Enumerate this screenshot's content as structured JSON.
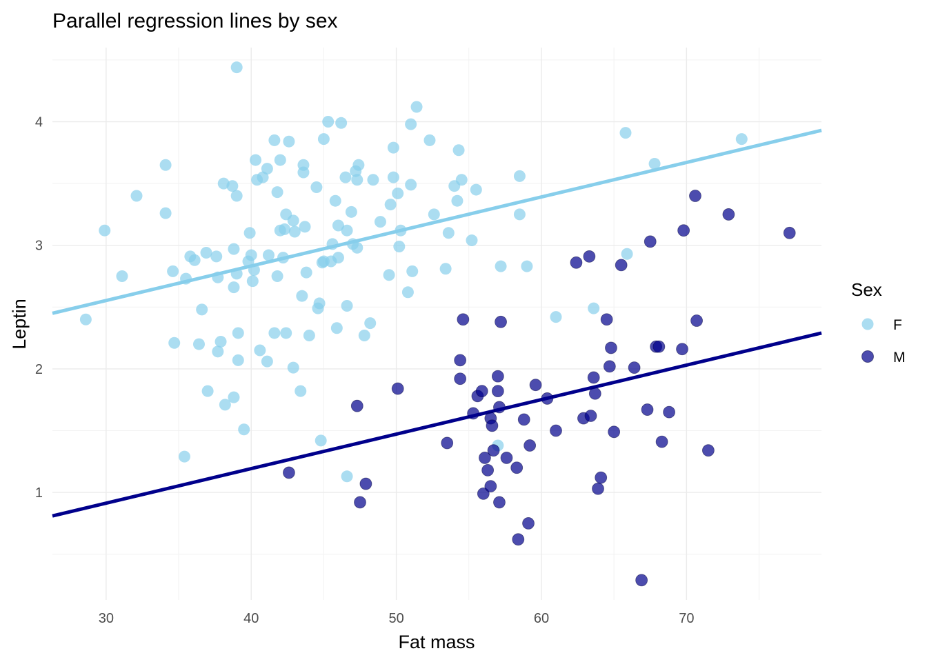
{
  "chart_data": {
    "type": "scatter",
    "title": "Parallel regression lines by sex",
    "xlabel": "Fat mass",
    "ylabel": "Leptin",
    "xlim": [
      26.3,
      79.3
    ],
    "ylim": [
      0.13,
      4.6
    ],
    "x_ticks": [
      30,
      40,
      50,
      60,
      70
    ],
    "y_ticks": [
      1,
      2,
      3,
      4
    ],
    "grid": true,
    "legend": {
      "title": "Sex",
      "position": "right"
    },
    "series": [
      {
        "name": "F",
        "color": "#87CEEB",
        "points": [
          [
            28.6,
            2.4
          ],
          [
            29.9,
            3.12
          ],
          [
            31.1,
            2.75
          ],
          [
            32.1,
            3.4
          ],
          [
            34.1,
            3.26
          ],
          [
            34.1,
            3.65
          ],
          [
            34.6,
            2.79
          ],
          [
            34.7,
            2.21
          ],
          [
            35.4,
            1.29
          ],
          [
            35.5,
            2.73
          ],
          [
            35.8,
            2.91
          ],
          [
            36.1,
            2.88
          ],
          [
            36.4,
            2.2
          ],
          [
            36.6,
            2.48
          ],
          [
            36.9,
            2.94
          ],
          [
            37.0,
            1.82
          ],
          [
            37.6,
            2.91
          ],
          [
            37.7,
            2.74
          ],
          [
            37.7,
            2.14
          ],
          [
            37.9,
            2.22
          ],
          [
            38.1,
            3.5
          ],
          [
            38.2,
            1.71
          ],
          [
            38.7,
            3.48
          ],
          [
            38.8,
            2.97
          ],
          [
            38.8,
            2.66
          ],
          [
            38.8,
            1.77
          ],
          [
            39.0,
            3.4
          ],
          [
            39.0,
            2.77
          ],
          [
            39.1,
            2.29
          ],
          [
            39.1,
            2.07
          ],
          [
            39.0,
            4.44
          ],
          [
            39.5,
            1.51
          ],
          [
            39.8,
            2.87
          ],
          [
            39.9,
            3.1
          ],
          [
            40.0,
            2.92
          ],
          [
            40.1,
            2.71
          ],
          [
            40.2,
            2.8
          ],
          [
            40.3,
            3.69
          ],
          [
            40.4,
            3.53
          ],
          [
            40.6,
            2.15
          ],
          [
            40.8,
            3.55
          ],
          [
            41.1,
            2.06
          ],
          [
            41.1,
            3.62
          ],
          [
            41.2,
            2.92
          ],
          [
            41.6,
            2.29
          ],
          [
            41.6,
            3.85
          ],
          [
            41.8,
            2.75
          ],
          [
            41.8,
            3.43
          ],
          [
            42.0,
            3.69
          ],
          [
            42.0,
            3.12
          ],
          [
            42.2,
            2.9
          ],
          [
            42.3,
            3.13
          ],
          [
            42.4,
            3.25
          ],
          [
            42.4,
            2.29
          ],
          [
            42.6,
            3.84
          ],
          [
            42.9,
            3.2
          ],
          [
            42.9,
            2.01
          ],
          [
            43.0,
            3.11
          ],
          [
            43.4,
            1.82
          ],
          [
            43.5,
            2.59
          ],
          [
            43.6,
            3.59
          ],
          [
            43.6,
            3.65
          ],
          [
            43.7,
            3.15
          ],
          [
            43.8,
            2.78
          ],
          [
            44.0,
            2.27
          ],
          [
            44.5,
            3.47
          ],
          [
            44.6,
            2.49
          ],
          [
            44.7,
            2.53
          ],
          [
            44.8,
            1.42
          ],
          [
            44.9,
            2.86
          ],
          [
            45.0,
            3.86
          ],
          [
            45.0,
            2.87
          ],
          [
            45.3,
            4.0
          ],
          [
            45.5,
            2.87
          ],
          [
            45.6,
            3.01
          ],
          [
            45.8,
            3.36
          ],
          [
            45.9,
            2.33
          ],
          [
            46.0,
            3.16
          ],
          [
            46.0,
            2.9
          ],
          [
            46.2,
            3.99
          ],
          [
            46.5,
            3.55
          ],
          [
            46.6,
            3.12
          ],
          [
            46.6,
            2.51
          ],
          [
            46.6,
            1.13
          ],
          [
            46.9,
            3.27
          ],
          [
            47.0,
            3.01
          ],
          [
            47.2,
            3.6
          ],
          [
            47.3,
            3.53
          ],
          [
            47.3,
            2.98
          ],
          [
            47.4,
            3.65
          ],
          [
            47.8,
            2.27
          ],
          [
            48.2,
            2.37
          ],
          [
            48.4,
            3.53
          ],
          [
            48.9,
            3.19
          ],
          [
            49.5,
            2.76
          ],
          [
            49.6,
            3.33
          ],
          [
            49.8,
            3.55
          ],
          [
            49.8,
            3.79
          ],
          [
            50.1,
            3.42
          ],
          [
            50.2,
            2.99
          ],
          [
            50.3,
            3.12
          ],
          [
            50.8,
            2.62
          ],
          [
            51.0,
            3.49
          ],
          [
            51.0,
            3.98
          ],
          [
            51.1,
            2.79
          ],
          [
            51.4,
            4.12
          ],
          [
            52.3,
            3.85
          ],
          [
            52.6,
            3.25
          ],
          [
            53.4,
            2.81
          ],
          [
            53.6,
            3.1
          ],
          [
            54.0,
            3.48
          ],
          [
            54.2,
            3.36
          ],
          [
            54.3,
            3.77
          ],
          [
            54.5,
            3.53
          ],
          [
            55.2,
            3.04
          ],
          [
            55.5,
            3.45
          ],
          [
            57.0,
            1.38
          ],
          [
            57.2,
            2.83
          ],
          [
            58.5,
            3.56
          ],
          [
            58.5,
            3.25
          ],
          [
            59.0,
            2.83
          ],
          [
            61.0,
            2.42
          ],
          [
            63.6,
            2.49
          ],
          [
            65.8,
            3.91
          ],
          [
            65.9,
            2.93
          ],
          [
            67.8,
            3.66
          ],
          [
            73.8,
            3.86
          ]
        ]
      },
      {
        "name": "M",
        "color": "#00008B",
        "points": [
          [
            42.6,
            1.16
          ],
          [
            47.3,
            1.7
          ],
          [
            47.5,
            0.92
          ],
          [
            47.9,
            1.07
          ],
          [
            50.1,
            1.84
          ],
          [
            53.5,
            1.4
          ],
          [
            54.4,
            2.07
          ],
          [
            54.4,
            1.92
          ],
          [
            54.6,
            2.4
          ],
          [
            55.3,
            1.64
          ],
          [
            55.6,
            1.78
          ],
          [
            55.9,
            1.82
          ],
          [
            56.0,
            0.99
          ],
          [
            56.1,
            1.28
          ],
          [
            56.3,
            1.18
          ],
          [
            56.5,
            1.6
          ],
          [
            56.5,
            1.05
          ],
          [
            56.6,
            1.54
          ],
          [
            56.7,
            1.34
          ],
          [
            57.0,
            1.94
          ],
          [
            57.0,
            1.82
          ],
          [
            57.1,
            1.69
          ],
          [
            57.1,
            0.92
          ],
          [
            57.2,
            2.38
          ],
          [
            57.6,
            1.28
          ],
          [
            58.3,
            1.2
          ],
          [
            58.4,
            0.62
          ],
          [
            58.8,
            1.59
          ],
          [
            59.1,
            0.75
          ],
          [
            59.2,
            1.38
          ],
          [
            59.6,
            1.87
          ],
          [
            60.4,
            1.76
          ],
          [
            61.0,
            1.5
          ],
          [
            62.4,
            2.86
          ],
          [
            62.9,
            1.6
          ],
          [
            63.3,
            2.91
          ],
          [
            63.4,
            1.62
          ],
          [
            63.6,
            1.93
          ],
          [
            63.7,
            1.8
          ],
          [
            63.9,
            1.03
          ],
          [
            64.1,
            1.12
          ],
          [
            64.5,
            2.4
          ],
          [
            64.7,
            2.02
          ],
          [
            64.8,
            2.17
          ],
          [
            65.0,
            1.49
          ],
          [
            65.5,
            2.84
          ],
          [
            66.4,
            2.01
          ],
          [
            66.9,
            0.29
          ],
          [
            67.3,
            1.67
          ],
          [
            67.5,
            3.03
          ],
          [
            67.9,
            2.18
          ],
          [
            68.1,
            2.18
          ],
          [
            68.3,
            1.41
          ],
          [
            68.8,
            1.65
          ],
          [
            69.7,
            2.16
          ],
          [
            69.8,
            3.12
          ],
          [
            70.6,
            3.4
          ],
          [
            70.7,
            2.39
          ],
          [
            71.5,
            1.34
          ],
          [
            72.9,
            3.25
          ],
          [
            77.1,
            3.1
          ]
        ]
      }
    ],
    "regression_lines": [
      {
        "series": "F",
        "color": "#87CEEB",
        "x": [
          26.3,
          79.3
        ],
        "y": [
          2.45,
          3.93
        ]
      },
      {
        "series": "M",
        "color": "#00008B",
        "x": [
          26.3,
          79.3
        ],
        "y": [
          0.81,
          2.29
        ]
      }
    ]
  }
}
